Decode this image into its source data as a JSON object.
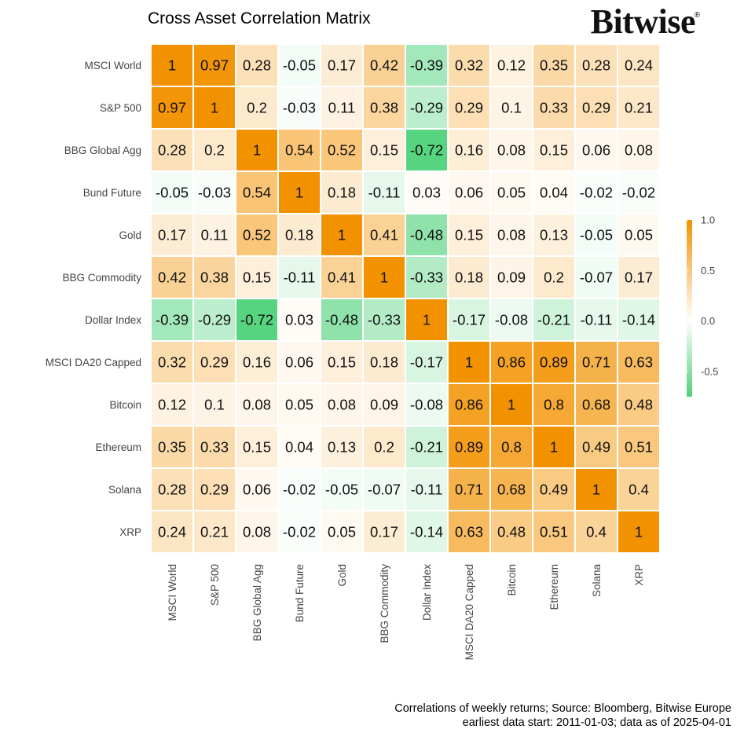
{
  "title": "Cross Asset Correlation Matrix",
  "brand": {
    "name": "Bitwise",
    "mark": "®"
  },
  "caption": {
    "line1": "Correlations of weekly returns; Source: Bloomberg, Bitwise Europe",
    "line2": "earliest data start: 2011-01-03; data as of 2025-04-01"
  },
  "colors": {
    "positive": "#f39200",
    "zero": "#ffffff",
    "negative": "#4fd27a",
    "grid": "#ffffff"
  },
  "chart_data": {
    "type": "heatmap",
    "title": "Cross Asset Correlation Matrix",
    "rows": [
      "MSCI World",
      "S&P 500",
      "BBG Global Agg",
      "Bund Future",
      "Gold",
      "BBG Commodity",
      "Dollar Index",
      "MSCI DA20 Capped",
      "Bitcoin",
      "Ethereum",
      "Solana",
      "XRP"
    ],
    "columns": [
      "MSCI World",
      "S&P 500",
      "BBG Global Agg",
      "Bund Future",
      "Gold",
      "BBG Commodity",
      "Dollar Index",
      "MSCI DA20 Capped",
      "Bitcoin",
      "Ethereum",
      "Solana",
      "XRP"
    ],
    "values": [
      [
        1,
        0.97,
        0.28,
        -0.05,
        0.17,
        0.42,
        -0.39,
        0.32,
        0.12,
        0.35,
        0.28,
        0.24
      ],
      [
        0.97,
        1,
        0.2,
        -0.03,
        0.11,
        0.38,
        -0.29,
        0.29,
        0.1,
        0.33,
        0.29,
        0.21
      ],
      [
        0.28,
        0.2,
        1,
        0.54,
        0.52,
        0.15,
        -0.72,
        0.16,
        0.08,
        0.15,
        0.06,
        0.08
      ],
      [
        -0.05,
        -0.03,
        0.54,
        1,
        0.18,
        -0.11,
        0.03,
        0.06,
        0.05,
        0.04,
        -0.02,
        -0.02
      ],
      [
        0.17,
        0.11,
        0.52,
        0.18,
        1,
        0.41,
        -0.48,
        0.15,
        0.08,
        0.13,
        -0.05,
        0.05
      ],
      [
        0.42,
        0.38,
        0.15,
        -0.11,
        0.41,
        1,
        -0.33,
        0.18,
        0.09,
        0.2,
        -0.07,
        0.17
      ],
      [
        -0.39,
        -0.29,
        -0.72,
        0.03,
        -0.48,
        -0.33,
        1,
        -0.17,
        -0.08,
        -0.21,
        -0.11,
        -0.14
      ],
      [
        0.32,
        0.29,
        0.16,
        0.06,
        0.15,
        0.18,
        -0.17,
        1,
        0.86,
        0.89,
        0.71,
        0.63
      ],
      [
        0.12,
        0.1,
        0.08,
        0.05,
        0.08,
        0.09,
        -0.08,
        0.86,
        1,
        0.8,
        0.68,
        0.48
      ],
      [
        0.35,
        0.33,
        0.15,
        0.04,
        0.13,
        0.2,
        -0.21,
        0.89,
        0.8,
        1,
        0.49,
        0.51
      ],
      [
        0.28,
        0.29,
        0.06,
        -0.02,
        -0.05,
        -0.07,
        -0.11,
        0.71,
        0.68,
        0.49,
        1,
        0.4
      ],
      [
        0.24,
        0.21,
        0.08,
        -0.02,
        0.05,
        0.17,
        -0.14,
        0.63,
        0.48,
        0.51,
        0.4,
        1
      ]
    ],
    "color_scale": {
      "min": -0.75,
      "max": 1.0,
      "ticks": [
        1.0,
        0.5,
        0.0,
        -0.5
      ],
      "tick_labels": [
        "1.0",
        "0.5",
        "0.0",
        "-0.5"
      ]
    },
    "legend_placement": "right",
    "grid": false
  }
}
